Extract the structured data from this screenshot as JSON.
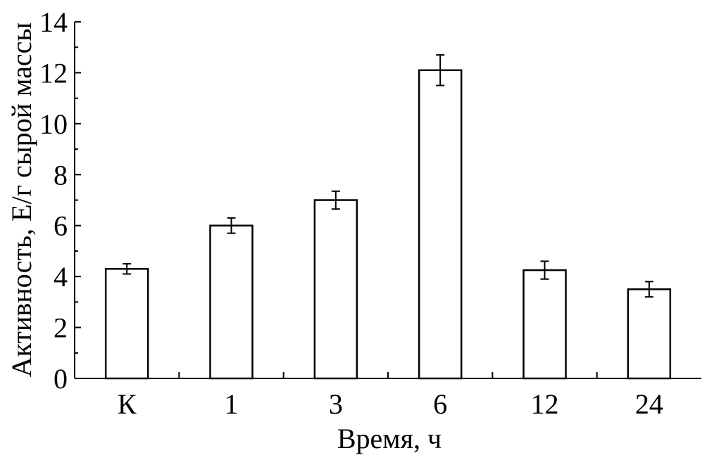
{
  "chart_data": {
    "type": "bar",
    "title": "",
    "xlabel": "Время, ч",
    "ylabel": "Активность, Е/г сырой массы",
    "categories": [
      "К",
      "1",
      "3",
      "6",
      "12",
      "24"
    ],
    "values": [
      4.3,
      6.0,
      7.0,
      12.1,
      4.25,
      3.5
    ],
    "errors": [
      0.2,
      0.3,
      0.35,
      0.6,
      0.35,
      0.3
    ],
    "ylim": [
      0,
      14
    ],
    "yticks": [
      "0",
      "2",
      "4",
      "6",
      "8",
      "10",
      "12",
      "14"
    ],
    "grid": false,
    "legend": "none",
    "bar_fill": "#ffffff",
    "bar_stroke": "#000000"
  }
}
